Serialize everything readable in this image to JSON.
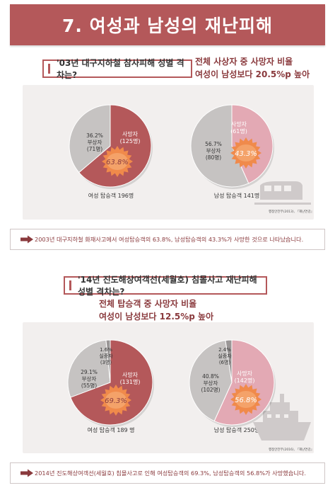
{
  "header": {
    "title": "7. 여성과 남성의 재난피해"
  },
  "section1": {
    "question": "'03년 대구지하철 참사피해 성별 격차는?",
    "stat_line1": "전체 사상자 중 사망자 비율",
    "stat_line2": "여성이 남성보다 20.5%p 높아",
    "source": "행정안전부(2013), 『재난연감』",
    "summary": "2003년 대구지하철 화재사고에서 여성탑승객의 63.8%, 남성탑승객의 43.3%가 사망한 것으로 나타났습니다."
  },
  "section2": {
    "question": "'14년 진도해상여객선(세월호) 침몰사고 재난피해 성별 격차는?",
    "stat_line1": "전체 탑승객 중 사망자 비율",
    "stat_line2": "여성이 남성보다 12.5%p 높아",
    "source": "행정안전부(2016), 『재난연감』",
    "summary": "2014년 진도해상여객선(세월호) 침몰사고로 인해 여성탑승객의 69.3%, 남성탑승객의 56.8%가 사망했습니다."
  },
  "colors": {
    "brand": "#b4585a",
    "female_dead": "#b4585a",
    "male_dead": "#e3a9b4",
    "survivor": "#c6c3c2",
    "badge": "#f08a4b"
  },
  "chart_data": [
    {
      "type": "pie",
      "caption": "여성 탑승객 196명",
      "slices": [
        {
          "name": "사망자",
          "percent": 63.8,
          "count_label": "(125명)",
          "pct_label": "63.8%"
        },
        {
          "name": "부상자",
          "percent": 36.2,
          "count_label": "(71명)",
          "pct_label": "36.2%"
        }
      ]
    },
    {
      "type": "pie",
      "caption": "남성 탑승객 141명",
      "slices": [
        {
          "name": "사망자",
          "percent": 43.3,
          "count_label": "(61명)",
          "pct_label": "43.3%"
        },
        {
          "name": "부상자",
          "percent": 56.7,
          "count_label": "(80명)",
          "pct_label": "56.7%"
        }
      ]
    },
    {
      "type": "pie",
      "caption": "여성 탑승객 189 명",
      "slices": [
        {
          "name": "사망자",
          "percent": 69.3,
          "count_label": "(131명)",
          "pct_label": "69.3%"
        },
        {
          "name": "부상자",
          "percent": 29.1,
          "count_label": "(55명)",
          "pct_label": "29.1%"
        },
        {
          "name": "실종자",
          "percent": 1.6,
          "count_label": "(3명)",
          "pct_label": "1.6%"
        }
      ]
    },
    {
      "type": "pie",
      "caption": "남성 탑승객 250명",
      "slices": [
        {
          "name": "사망자",
          "percent": 56.8,
          "count_label": "(142명)",
          "pct_label": "56.8%"
        },
        {
          "name": "부상자",
          "percent": 40.8,
          "count_label": "(102명)",
          "pct_label": "40.8%"
        },
        {
          "name": "실종자",
          "percent": 2.4,
          "count_label": "(6명)",
          "pct_label": "2.4%"
        }
      ]
    }
  ]
}
